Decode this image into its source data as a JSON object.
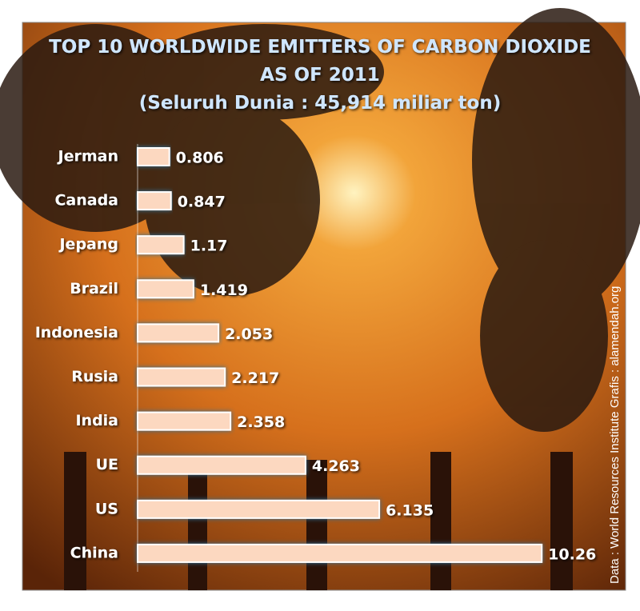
{
  "chart_data": {
    "type": "hbar",
    "title": "TOP 10 WORLDWIDE EMITTERS OF CARBON DIOXIDE AS OF 2011",
    "subtitle": "(Seluruh Dunia : 45,914 miliar ton)",
    "note": "Data : World Resources Institute Grafis : alamendah.org",
    "categories": [
      "Jerman",
      "Canada",
      "Jepang",
      "Brazil",
      "Indonesia",
      "Rusia",
      "India",
      "UE",
      "US",
      "China"
    ],
    "values": [
      0.806,
      0.847,
      1.17,
      1.419,
      2.053,
      2.217,
      2.358,
      4.263,
      6.135,
      10.26
    ],
    "color": "#fcd8c0",
    "xlim": [
      0,
      10.5
    ]
  }
}
